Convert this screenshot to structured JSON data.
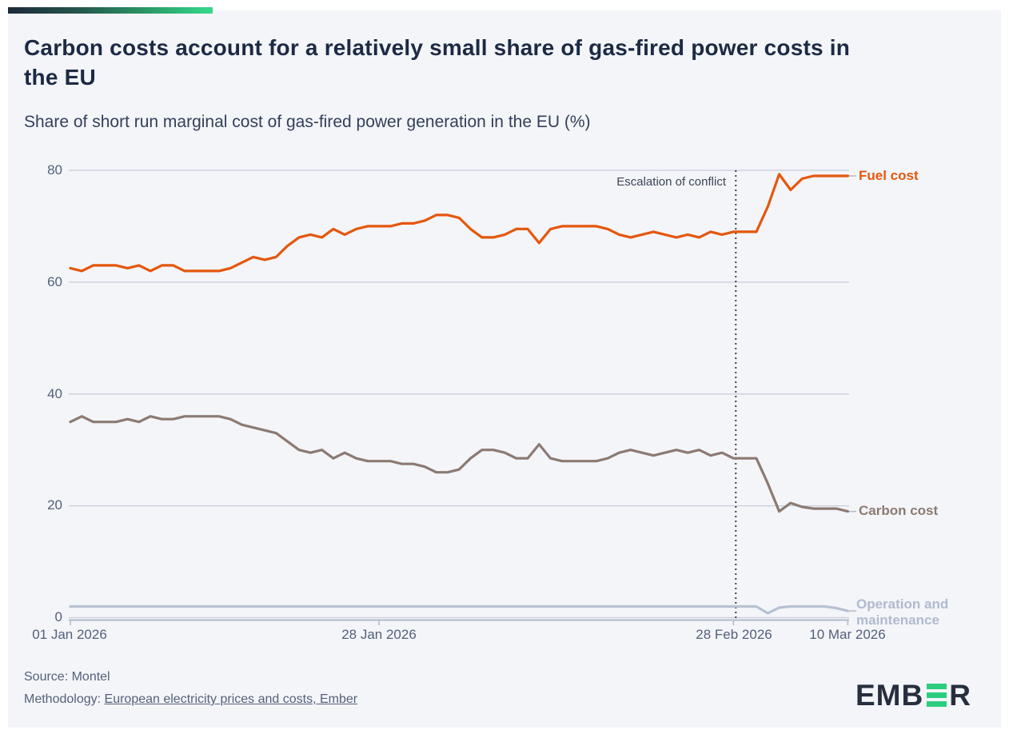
{
  "header": {
    "title": "Carbon costs account for a relatively small share of gas-fired power costs in the EU",
    "subtitle": "Share of short run marginal cost of gas-fired power generation in the EU (%)"
  },
  "chart_data": {
    "type": "line",
    "title": "Carbon costs account for a relatively small share of gas-fired power costs in the EU",
    "subtitle": "Share of short run marginal cost of gas-fired power generation in the EU (%)",
    "x_unit": "day",
    "x_start": "01 Jan 2026",
    "x_end": "10 Mar 2026",
    "x_tick_labels": [
      "01 Jan 2026",
      "28 Jan 2026",
      "28 Feb 2026",
      "10 Mar 2026"
    ],
    "x_tick_days": [
      0,
      27,
      58,
      68
    ],
    "y_ticks": [
      0,
      20,
      40,
      60,
      80
    ],
    "y_tick_labels": [
      "0",
      "20",
      "40",
      "60",
      "80"
    ],
    "ylim": [
      0,
      80
    ],
    "grid": "horizontal",
    "legend_position": "right-of-lines",
    "annotation": {
      "label": "Escalation of conflict",
      "day_index": 58.2
    },
    "series": [
      {
        "name": "Fuel cost",
        "color": "#e4570d",
        "values": [
          62.5,
          62,
          63,
          63,
          63,
          62.5,
          63,
          62,
          63,
          63,
          62,
          62,
          62,
          62,
          62.5,
          63.5,
          64.5,
          64,
          64.5,
          66.5,
          68,
          68.5,
          68,
          69.5,
          68.5,
          69.5,
          70,
          70,
          70,
          70.5,
          70.5,
          71,
          72,
          72,
          71.5,
          69.5,
          68,
          68,
          68.5,
          69.5,
          69.5,
          67,
          69.5,
          70,
          70,
          70,
          70,
          69.5,
          68.5,
          68,
          68.5,
          69,
          68.5,
          68,
          68.5,
          68,
          69,
          68.5,
          69,
          69,
          69,
          73.5,
          79.3,
          76.5,
          78.5,
          79,
          79,
          79,
          79
        ]
      },
      {
        "name": "Carbon cost",
        "color": "#8c7a72",
        "values": [
          35,
          36,
          35,
          35,
          35,
          35.5,
          35,
          36,
          35.5,
          35.5,
          36,
          36,
          36,
          36,
          35.5,
          34.5,
          34,
          33.5,
          33,
          31.5,
          30,
          29.5,
          30,
          28.5,
          29.5,
          28.5,
          28,
          28,
          28,
          27.5,
          27.5,
          27,
          26,
          26,
          26.5,
          28.5,
          30,
          30,
          29.5,
          28.5,
          28.5,
          31,
          28.5,
          28,
          28,
          28,
          28,
          28.5,
          29.5,
          30,
          29.5,
          29,
          29.5,
          30,
          29.5,
          30,
          29,
          29.5,
          28.5,
          28.5,
          28.5,
          24,
          19,
          20.5,
          19.8,
          19.5,
          19.5,
          19.5,
          19
        ]
      },
      {
        "name": "Operation and maintenance",
        "color": "#b8c1d2",
        "values": [
          2,
          2,
          2,
          2,
          2,
          2,
          2,
          2,
          2,
          2,
          2,
          2,
          2,
          2,
          2,
          2,
          2,
          2,
          2,
          2,
          2,
          2,
          2,
          2,
          2,
          2,
          2,
          2,
          2,
          2,
          2,
          2,
          2,
          2,
          2,
          2,
          2,
          2,
          2,
          2,
          2,
          2,
          2,
          2,
          2,
          2,
          2,
          2,
          2,
          2,
          2,
          2,
          2,
          2,
          2,
          2,
          2,
          2,
          2,
          2,
          2,
          0.8,
          1.8,
          2,
          2,
          2,
          2,
          1.7,
          1.2
        ]
      }
    ]
  },
  "labels": {
    "fuel": "Fuel cost",
    "carbon": "Carbon cost",
    "om": "Operation and maintenance",
    "annotation": "Escalation of conflict"
  },
  "footer": {
    "source": "Source: Montel",
    "methodology_prefix": "Methodology: ",
    "methodology_link": "European electricity prices and costs, Ember"
  },
  "logo": {
    "left": "EMB",
    "right": "R",
    "green_color": "#2dcd7f"
  },
  "colors": {
    "background": "#f3f5f9",
    "title": "#1d2a44",
    "axis_text": "#545f79",
    "gridline": "#c8ced9",
    "fuel": "#e4570d",
    "carbon": "#8c7a72",
    "om": "#b8c1d2"
  }
}
